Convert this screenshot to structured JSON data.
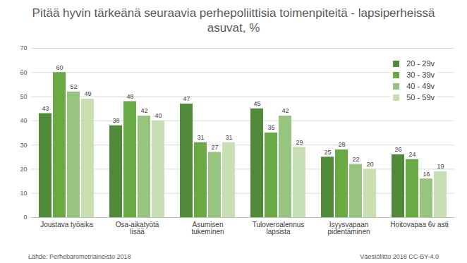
{
  "chart_data": {
    "type": "bar",
    "title": "Pitää hyvin tärkeänä seuraavia perhepoliittisia toimenpiteitä - lapsiperheissä asuvat, %",
    "categories": [
      "Joustava työaika",
      "Osa-aikatyötä lisää",
      "Asumisen tukeminen",
      "Tuloveroalennus lapsista",
      "Isyysvapaan pidentäminen",
      "Hoitovapaa 6v asti"
    ],
    "series": [
      {
        "name": "20 - 29v",
        "color": "#4f8a3a",
        "values": [
          43,
          38,
          47,
          45,
          25,
          26
        ]
      },
      {
        "name": "30 - 39v",
        "color": "#6aaa45",
        "values": [
          60,
          48,
          31,
          35,
          28,
          24
        ]
      },
      {
        "name": "40 - 49v",
        "color": "#97c57f",
        "values": [
          52,
          42,
          27,
          42,
          22,
          16
        ]
      },
      {
        "name": "50 - 59v",
        "color": "#c6e0b4",
        "values": [
          49,
          40,
          31,
          29,
          20,
          19
        ]
      }
    ],
    "ylim": [
      0,
      70
    ],
    "yticks": [
      0,
      10,
      20,
      30,
      40,
      50,
      60,
      70
    ],
    "grid": true,
    "legend": "top-right",
    "data_labels": true,
    "annotations": [
      "Lähde: Perhebarometriaineisto 2018",
      "Väestöliitto 2018 CC-BY-4.0"
    ]
  }
}
